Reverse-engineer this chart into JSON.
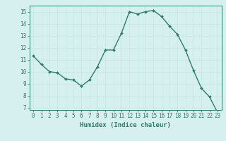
{
  "x": [
    0,
    1,
    2,
    3,
    4,
    5,
    6,
    7,
    8,
    9,
    10,
    11,
    12,
    13,
    14,
    15,
    16,
    17,
    18,
    19,
    20,
    21,
    22,
    23
  ],
  "y": [
    11.3,
    10.6,
    10.0,
    9.9,
    9.4,
    9.3,
    8.8,
    9.3,
    10.4,
    11.8,
    11.8,
    13.2,
    15.0,
    14.8,
    15.0,
    15.1,
    14.6,
    13.8,
    13.1,
    11.8,
    10.1,
    8.6,
    7.9,
    6.6
  ],
  "line_color": "#2e7d6e",
  "marker": "D",
  "marker_size": 2.0,
  "bg_color": "#d6f0ef",
  "grid_color": "#c8e8e6",
  "xlabel": "Humidex (Indice chaleur)",
  "ylim": [
    6.8,
    15.5
  ],
  "xlim": [
    -0.5,
    23.5
  ],
  "yticks": [
    7,
    8,
    9,
    10,
    11,
    12,
    13,
    14,
    15
  ],
  "xticks": [
    0,
    1,
    2,
    3,
    4,
    5,
    6,
    7,
    8,
    9,
    10,
    11,
    12,
    13,
    14,
    15,
    16,
    17,
    18,
    19,
    20,
    21,
    22,
    23
  ],
  "tick_fontsize": 5.5,
  "label_fontsize": 6.5,
  "line_width": 1.0
}
